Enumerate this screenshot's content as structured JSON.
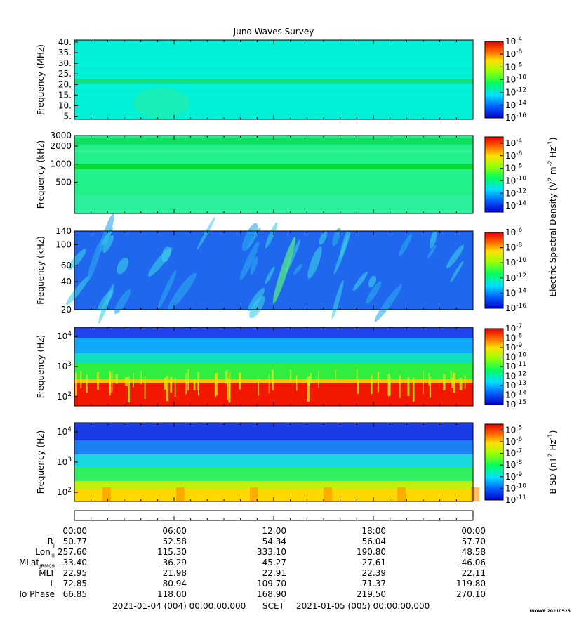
{
  "title": "Juno Waves Survey",
  "stamp": "UIOWA 20210523",
  "chart_data": [
    {
      "type": "heatmap",
      "ylabel": "Frequency (MHz)",
      "yscale": "linear",
      "ylim": [
        3.5,
        41
      ],
      "ytick_values": [
        5,
        10,
        15,
        20,
        25,
        30,
        35,
        40
      ],
      "ytick_labels": [
        "5.",
        "10.",
        "15.",
        "20.",
        "25.",
        "30.",
        "35.",
        "40."
      ],
      "colorbar": {
        "exp_min": -16,
        "exp_max": -4,
        "tick_exps": [
          -4,
          -6,
          -8,
          -10,
          -12,
          -14,
          -16
        ]
      },
      "colors": {
        "background": "#00f2d8"
      }
    },
    {
      "type": "heatmap",
      "ylabel": "Frequency (kHz)",
      "yscale": "log",
      "ylim": [
        150,
        3000
      ],
      "ytick_values": [
        500,
        1000,
        2000,
        3000
      ],
      "ytick_labels": [
        "500",
        "1000",
        "2000",
        "3000"
      ],
      "colorbar": {
        "exp_min": -15,
        "exp_max": -3,
        "tick_exps": [
          -4,
          -6,
          -8,
          -10,
          -12,
          -14
        ]
      },
      "colors": {
        "background": "#22f08a"
      }
    },
    {
      "type": "heatmap",
      "ylabel": "Frequency (kHz)",
      "yscale": "log",
      "ylim": [
        20,
        140
      ],
      "ytick_values": [
        20,
        40,
        60,
        100,
        140
      ],
      "ytick_labels": [
        "20",
        "40",
        "60",
        "100",
        "140"
      ],
      "colorbar": {
        "exp_min": -16,
        "exp_max": -6,
        "tick_exps": [
          -6,
          -8,
          -10,
          -12,
          -14,
          -16
        ]
      },
      "colors": {
        "background": "#1f68ee"
      }
    },
    {
      "type": "heatmap",
      "ylabel": "Frequency (Hz)",
      "yscale": "log",
      "ylim": [
        50,
        20000
      ],
      "ytick_values": [
        100,
        1000,
        10000
      ],
      "ytick_exps": [
        "2",
        "3",
        "4"
      ],
      "colorbar": {
        "exp_min": -15,
        "exp_max": -7,
        "tick_exps": [
          -7,
          -8,
          -9,
          -10,
          -11,
          -12,
          -13,
          -14,
          -15
        ]
      },
      "colors": {
        "background": "#2244ee"
      }
    },
    {
      "type": "heatmap",
      "ylabel": "Frequency (Hz)",
      "yscale": "log",
      "ylim": [
        50,
        20000
      ],
      "ytick_values": [
        100,
        1000,
        10000
      ],
      "ytick_exps": [
        "2",
        "3",
        "4"
      ],
      "colorbar": {
        "exp_min": -11,
        "exp_max": -4.5,
        "tick_exps": [
          -5,
          -6,
          -7,
          -8,
          -9,
          -10,
          -11
        ]
      },
      "colors": {
        "background": "#1a3ae8"
      }
    }
  ],
  "colorbar_label_e": "Electric Spectral Density (V",
  "colorbar_label_b": "B SD (nT",
  "time_labels": [
    "00:00",
    "06:00",
    "12:00",
    "18:00",
    "00:00"
  ],
  "ephemeris": {
    "row_labels": [
      "R",
      "Lon",
      "MLat",
      "MLT",
      "L",
      "Io Phase"
    ],
    "row_subs": [
      "J",
      "III",
      "JRM09",
      "",
      "",
      ""
    ],
    "rows": [
      [
        "50.77",
        "52.58",
        "54.34",
        "56.04",
        "57.70"
      ],
      [
        "257.60",
        "115.30",
        "333.10",
        "190.80",
        "48.58"
      ],
      [
        "-33.40",
        "-36.29",
        "-45.27",
        "-27.61",
        "-46.06"
      ],
      [
        "22.95",
        "21.98",
        "22.91",
        "22.39",
        "22.11"
      ],
      [
        "72.85",
        "80.94",
        "109.70",
        "71.37",
        "119.80"
      ],
      [
        "66.85",
        "118.00",
        "168.90",
        "219.50",
        "270.10"
      ]
    ]
  },
  "footer": {
    "start": "2021-01-04 (004) 00:00:00.000",
    "scet": "SCET",
    "end": "2021-01-05 (005) 00:00:00.000"
  }
}
